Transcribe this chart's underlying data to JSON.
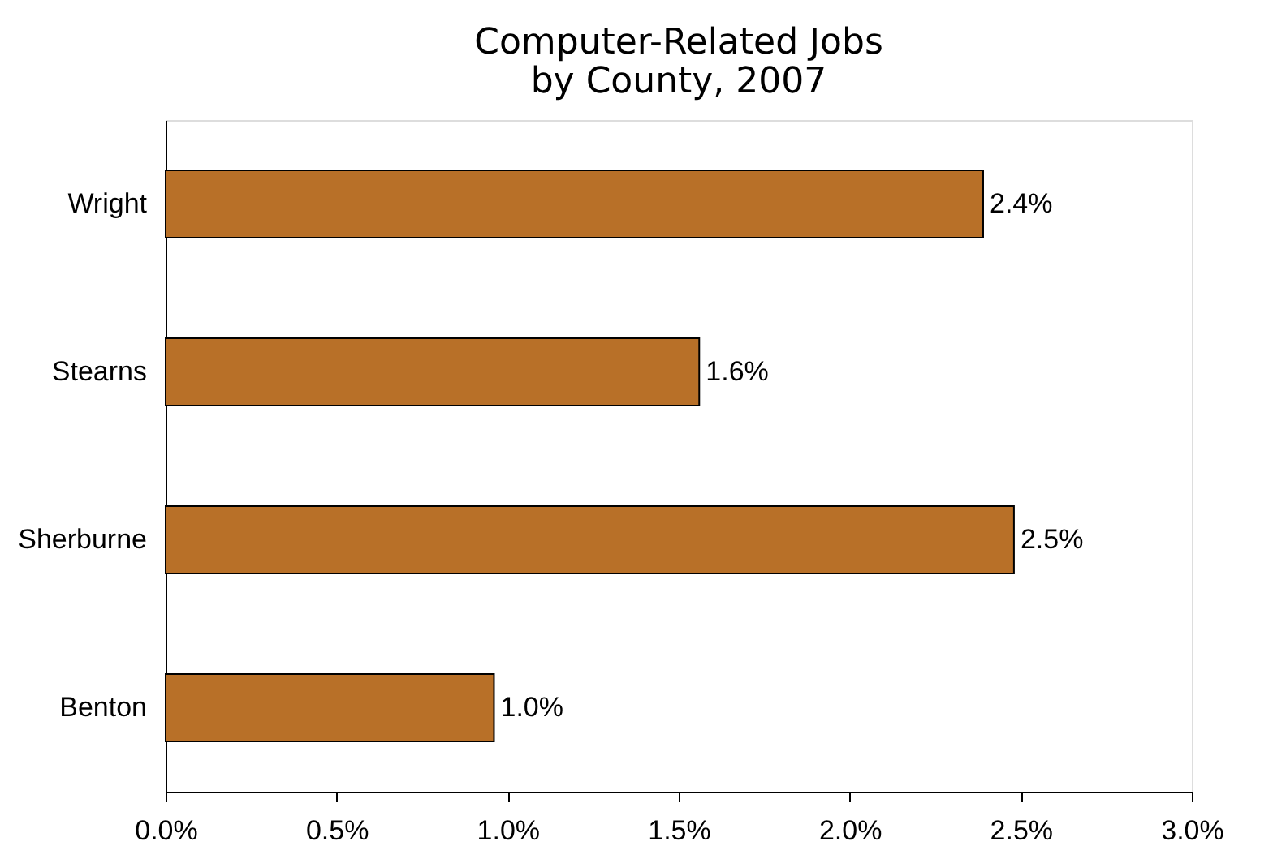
{
  "chart_data": {
    "type": "bar",
    "orientation": "horizontal",
    "title": "Computer-Related Jobs\nby County, 2007",
    "categories": [
      "Wright",
      "Stearns",
      "Sherburne",
      "Benton"
    ],
    "values": [
      2.39,
      1.56,
      2.48,
      0.96
    ],
    "value_labels": [
      "2.4%",
      "1.6%",
      "2.5%",
      "1.0%"
    ],
    "color": "#b87028",
    "xlim": [
      0,
      3.0
    ],
    "xticks": [
      {
        "value": 0,
        "label": "0.0%"
      },
      {
        "value": 0.5,
        "label": "0.5%"
      },
      {
        "value": 1.0,
        "label": "1.0%"
      },
      {
        "value": 1.5,
        "label": "1.5%"
      },
      {
        "value": 2.0,
        "label": "2.0%"
      },
      {
        "value": 2.5,
        "label": "2.5%"
      },
      {
        "value": 3.0,
        "label": "3.0%"
      }
    ],
    "grid": false
  }
}
